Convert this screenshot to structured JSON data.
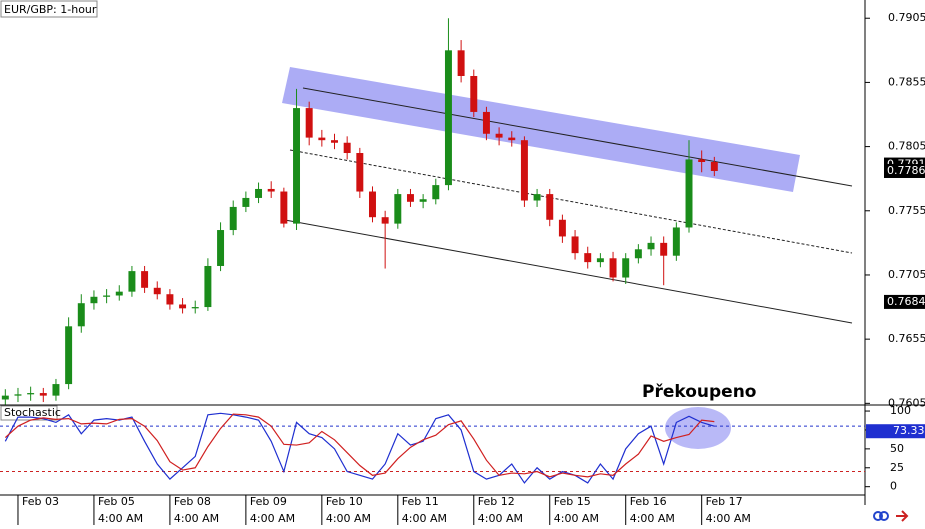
{
  "chart_data": [
    {
      "type": "candlestick",
      "title": "EUR/GBP: 1-hour",
      "annotation": "Překoupeno",
      "up_color": "#1a8c1a",
      "down_color": "#d01010",
      "xlim": [
        -1.42,
        66.9
      ],
      "ylim": [
        0.76037,
        0.79192
      ],
      "yticks": [
        0.7905,
        0.7855,
        0.7805,
        0.7755,
        0.7705,
        0.7655,
        0.7605
      ],
      "price_markers": [
        0.7791,
        0.7786,
        0.7684
      ],
      "xticks": [
        {
          "value": 0,
          "label": "Feb 03"
        },
        {
          "value": 6,
          "label": "Feb 05"
        },
        {
          "value": 12,
          "label": "Feb 08"
        },
        {
          "value": 18,
          "label": "Feb 09"
        },
        {
          "value": 24,
          "label": "Feb 10"
        },
        {
          "value": 30,
          "label": "Feb 11"
        },
        {
          "value": 36,
          "label": "Feb 12"
        },
        {
          "value": 42,
          "label": "Feb 15"
        },
        {
          "value": 48,
          "label": "Feb 16"
        },
        {
          "value": 54,
          "label": "Feb 17"
        }
      ],
      "xticks_time": [
        {
          "value": 6,
          "label": "4:00 AM"
        },
        {
          "value": 12,
          "label": "4:00 AM"
        },
        {
          "value": 18,
          "label": "4:00 AM"
        },
        {
          "value": 24,
          "label": "4:00 AM"
        },
        {
          "value": 30,
          "label": "4:00 AM"
        },
        {
          "value": 36,
          "label": "4:00 AM"
        },
        {
          "value": 42,
          "label": "4:00 AM"
        },
        {
          "value": 48,
          "label": "4:00 AM"
        },
        {
          "value": 54,
          "label": "4:00 AM"
        }
      ],
      "x": [
        -1,
        0,
        1,
        2,
        3,
        4,
        5,
        6,
        7,
        8,
        9,
        10,
        11,
        12,
        13,
        14,
        15,
        16,
        17,
        18,
        19,
        20,
        21,
        22,
        23,
        24,
        25,
        26,
        27,
        28,
        29,
        30,
        31,
        32,
        33,
        34,
        35,
        36,
        37,
        38,
        39,
        40,
        41,
        42,
        43,
        44,
        45,
        46,
        47,
        48,
        49,
        50,
        51,
        52,
        53,
        54,
        55
      ],
      "open": [
        0.7608,
        0.7611,
        0.7612,
        0.7613,
        0.7611,
        0.762,
        0.7665,
        0.7683,
        0.7688,
        0.7689,
        0.7692,
        0.7708,
        0.7695,
        0.769,
        0.7682,
        0.7679,
        0.768,
        0.7712,
        0.774,
        0.7758,
        0.7765,
        0.7772,
        0.777,
        0.7745,
        0.7835,
        0.7812,
        0.781,
        0.7808,
        0.78,
        0.777,
        0.775,
        0.7745,
        0.7768,
        0.7762,
        0.7764,
        0.7775,
        0.788,
        0.786,
        0.7832,
        0.7815,
        0.7812,
        0.781,
        0.7763,
        0.7768,
        0.7748,
        0.7735,
        0.7722,
        0.7715,
        0.7718,
        0.7703,
        0.7718,
        0.7725,
        0.773,
        0.772,
        0.7742,
        0.7795,
        0.7793
      ],
      "high": [
        0.7616,
        0.7617,
        0.7618,
        0.7617,
        0.7624,
        0.7672,
        0.769,
        0.7693,
        0.7694,
        0.7697,
        0.7712,
        0.7712,
        0.77,
        0.7694,
        0.7687,
        0.7685,
        0.7718,
        0.7746,
        0.7763,
        0.777,
        0.7777,
        0.7778,
        0.7773,
        0.785,
        0.784,
        0.7818,
        0.7815,
        0.7813,
        0.7804,
        0.7774,
        0.7755,
        0.7772,
        0.7772,
        0.7768,
        0.778,
        0.7905,
        0.7888,
        0.7865,
        0.7836,
        0.782,
        0.7817,
        0.7813,
        0.7772,
        0.7772,
        0.7752,
        0.774,
        0.7727,
        0.7722,
        0.7723,
        0.7722,
        0.7729,
        0.7735,
        0.7735,
        0.7746,
        0.781,
        0.7802,
        0.7797
      ],
      "low": [
        0.7604,
        0.7606,
        0.7607,
        0.7606,
        0.7607,
        0.7616,
        0.766,
        0.7678,
        0.7683,
        0.7685,
        0.7688,
        0.7691,
        0.7686,
        0.7678,
        0.7675,
        0.7675,
        0.7677,
        0.7708,
        0.7736,
        0.7754,
        0.7761,
        0.7765,
        0.7742,
        0.774,
        0.7806,
        0.7805,
        0.7803,
        0.7795,
        0.7765,
        0.7746,
        0.771,
        0.7741,
        0.7758,
        0.7757,
        0.776,
        0.7771,
        0.7855,
        0.7828,
        0.781,
        0.7806,
        0.7805,
        0.7758,
        0.7758,
        0.7743,
        0.773,
        0.7717,
        0.771,
        0.7711,
        0.77,
        0.7698,
        0.7714,
        0.772,
        0.7697,
        0.7716,
        0.7738,
        0.7785,
        0.7782
      ],
      "close": [
        0.7611,
        0.7612,
        0.7613,
        0.7611,
        0.762,
        0.7665,
        0.7683,
        0.7688,
        0.7689,
        0.7692,
        0.7708,
        0.7695,
        0.769,
        0.7682,
        0.7679,
        0.768,
        0.7712,
        0.774,
        0.7758,
        0.7765,
        0.7772,
        0.777,
        0.7745,
        0.7835,
        0.7812,
        0.781,
        0.7808,
        0.78,
        0.777,
        0.775,
        0.7745,
        0.7768,
        0.7762,
        0.7764,
        0.7775,
        0.788,
        0.786,
        0.7832,
        0.7815,
        0.7812,
        0.781,
        0.7763,
        0.7768,
        0.7748,
        0.7735,
        0.7722,
        0.7715,
        0.7718,
        0.7703,
        0.7718,
        0.7725,
        0.773,
        0.772,
        0.7742,
        0.7795,
        0.7793,
        0.7786
      ]
    },
    {
      "type": "line",
      "title": "Stochastic",
      "ylim": [
        -11,
        108
      ],
      "yticks": [
        100,
        75,
        50,
        25,
        0
      ],
      "levels": [
        {
          "value": 80,
          "color": "#2233cc"
        },
        {
          "value": 20,
          "color": "#cc2222"
        }
      ],
      "value_marker": 73.33,
      "series": [
        {
          "color": "#1f2fd0",
          "values": [
            60,
            92,
            92,
            90,
            85,
            95,
            70,
            88,
            90,
            88,
            92,
            60,
            30,
            10,
            25,
            40,
            95,
            97,
            95,
            92,
            88,
            60,
            20,
            85,
            70,
            65,
            50,
            20,
            15,
            10,
            30,
            70,
            55,
            60,
            90,
            95,
            75,
            20,
            10,
            15,
            30,
            5,
            25,
            10,
            20,
            15,
            5,
            30,
            10,
            50,
            70,
            80,
            30,
            85,
            93,
            85,
            80
          ]
        },
        {
          "color": "#d02020",
          "values": [
            65,
            80,
            88,
            91,
            89,
            90,
            83,
            84,
            83,
            89,
            90,
            80,
            61,
            33,
            22,
            25,
            53,
            77,
            96,
            95,
            92,
            80,
            56,
            55,
            58,
            73,
            62,
            45,
            28,
            15,
            18,
            37,
            52,
            62,
            68,
            82,
            87,
            63,
            35,
            15,
            18,
            17,
            20,
            13,
            18,
            15,
            13,
            17,
            15,
            30,
            43,
            67,
            60,
            65,
            69,
            88,
            86
          ]
        }
      ]
    }
  ]
}
